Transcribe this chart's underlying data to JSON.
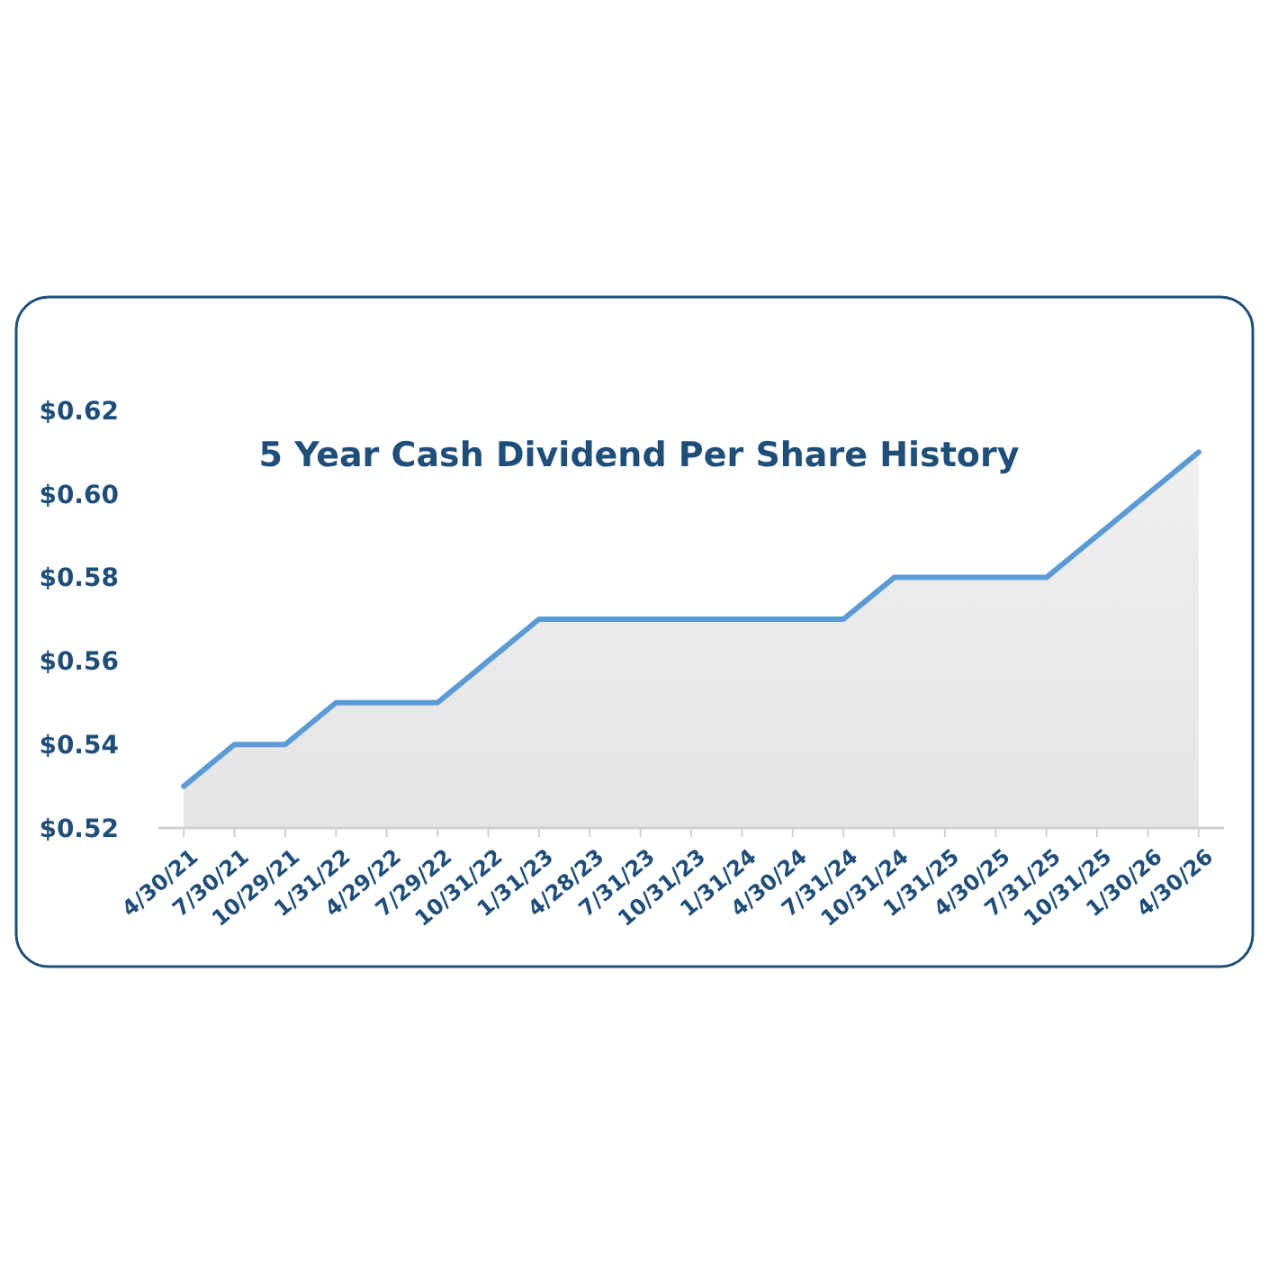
{
  "chart_data": {
    "type": "area",
    "title": "5 Year Cash Dividend Per Share History",
    "categories": [
      "4/30/21",
      "7/30/21",
      "10/29/21",
      "1/31/22",
      "4/29/22",
      "7/29/22",
      "10/31/22",
      "1/31/23",
      "4/28/23",
      "7/31/23",
      "10/31/23",
      "1/31/24",
      "4/30/24",
      "7/31/24",
      "10/31/24",
      "1/31/25",
      "4/30/25",
      "7/31/25",
      "10/31/25",
      "1/30/26",
      "4/30/26"
    ],
    "series": [
      {
        "color": "#5b9bd5",
        "values": [
          0.53,
          0.54,
          0.54,
          0.55,
          0.55,
          0.55,
          0.56,
          0.57,
          0.57,
          0.57,
          0.57,
          0.57,
          0.57,
          0.57,
          0.58,
          0.58,
          0.58,
          0.58,
          0.59,
          0.6,
          0.61
        ]
      }
    ],
    "ylim": [
      0.52,
      0.62
    ],
    "yticks": [
      {
        "value": 0.52,
        "label": "$0.52"
      },
      {
        "value": 0.54,
        "label": "$0.54"
      },
      {
        "value": 0.56,
        "label": "$0.56"
      },
      {
        "value": 0.58,
        "label": "$0.58"
      },
      {
        "value": 0.6,
        "label": "$0.60"
      },
      {
        "value": 0.62,
        "label": "$0.62"
      }
    ],
    "grid": false
  }
}
